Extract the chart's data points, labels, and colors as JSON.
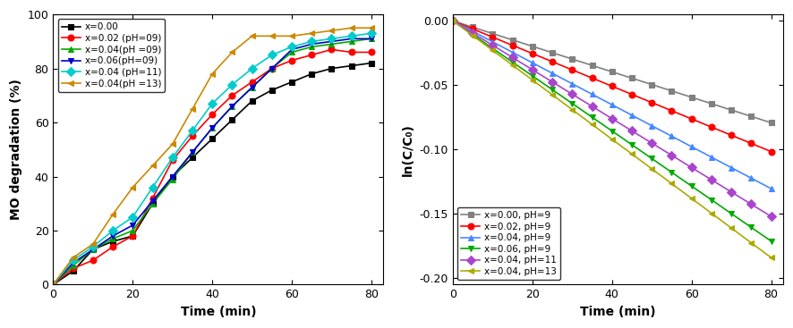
{
  "time_deg": [
    0,
    5,
    10,
    15,
    20,
    25,
    30,
    35,
    40,
    45,
    50,
    55,
    60,
    65,
    70,
    75,
    80
  ],
  "time_ln": [
    0,
    5,
    10,
    15,
    20,
    25,
    30,
    35,
    40,
    45,
    50,
    55,
    60,
    65,
    70,
    75,
    80
  ],
  "degradation": {
    "x000": [
      0,
      5,
      13,
      16,
      18,
      30,
      40,
      47,
      54,
      61,
      68,
      72,
      75,
      78,
      80,
      81,
      82
    ],
    "x002_pH9": [
      0,
      6,
      9,
      14,
      18,
      32,
      46,
      55,
      63,
      70,
      75,
      80,
      83,
      85,
      87,
      86,
      86
    ],
    "x004_pH9": [
      0,
      7,
      13,
      17,
      20,
      30,
      39,
      49,
      58,
      66,
      73,
      80,
      86,
      88,
      89,
      90,
      91
    ],
    "x006_pH9": [
      0,
      8,
      13,
      18,
      22,
      31,
      40,
      49,
      58,
      66,
      73,
      80,
      87,
      89,
      90,
      91,
      91
    ],
    "x004_pH11": [
      0,
      9,
      14,
      20,
      25,
      36,
      47,
      57,
      67,
      74,
      80,
      85,
      88,
      90,
      91,
      92,
      93
    ],
    "x004_pH13": [
      0,
      10,
      15,
      26,
      36,
      44,
      52,
      65,
      78,
      86,
      92,
      92,
      92,
      93,
      94,
      95,
      95
    ]
  },
  "ln_rate": {
    "x000_pH9": 0.00099,
    "x002_pH9": 0.00127,
    "x004_pH9": 0.00163,
    "x006_pH9": 0.00214,
    "x004_pH11": 0.0019,
    "x004_pH13": 0.0023
  },
  "deg_series": [
    {
      "key": "x000",
      "color": "#000000",
      "marker": "s",
      "label": "x=0.00",
      "mfc": "#000000"
    },
    {
      "key": "x002_pH9",
      "color": "#ff0000",
      "marker": "o",
      "label": "x=0.02 (pH=09)",
      "mfc": "#ff0000"
    },
    {
      "key": "x004_pH9",
      "color": "#00aa00",
      "marker": "^",
      "label": "x=0.04(pH =09)",
      "mfc": "#00aa00"
    },
    {
      "key": "x006_pH9",
      "color": "#0000cc",
      "marker": "v",
      "label": "x=0.06(pH=09)",
      "mfc": "#0000cc"
    },
    {
      "key": "x004_pH11",
      "color": "#00cccc",
      "marker": "D",
      "label": "x=0.04 (pH=11)",
      "mfc": "#00cccc"
    },
    {
      "key": "x004_pH13",
      "color": "#cc8800",
      "marker": "<",
      "label": "x=0.04(pH =13)",
      "mfc": "#cc8800"
    }
  ],
  "ln_series": [
    {
      "key": "x000_pH9",
      "color": "#808080",
      "marker": "s",
      "label": "x=0.00, pH=9"
    },
    {
      "key": "x002_pH9",
      "color": "#ff0000",
      "marker": "o",
      "label": "x=0.02, pH=9"
    },
    {
      "key": "x004_pH9",
      "color": "#4488ff",
      "marker": "^",
      "label": "x=0.04, pH=9"
    },
    {
      "key": "x006_pH9",
      "color": "#00aa00",
      "marker": "v",
      "label": "x=0.06, pH=9"
    },
    {
      "key": "x004_pH11",
      "color": "#aa44cc",
      "marker": "D",
      "label": "x=0.04, pH=11"
    },
    {
      "key": "x004_pH13",
      "color": "#aaaa00",
      "marker": "<",
      "label": "x=0.04, pH=13"
    }
  ],
  "xlabel": "Time (min)",
  "ylabel_deg": "MO degradation (%)",
  "ylabel_ln": "ln(C/C₀)",
  "xlim_deg": [
    0,
    83
  ],
  "xlim_ln": [
    0,
    83
  ],
  "ylim_deg": [
    0,
    100
  ],
  "ylim_ln": [
    -0.205,
    0.005
  ],
  "xticks": [
    0,
    20,
    40,
    60,
    80
  ],
  "yticks_deg": [
    0,
    20,
    40,
    60,
    80,
    100
  ],
  "yticks_ln": [
    0.0,
    -0.05,
    -0.1,
    -0.15,
    -0.2
  ]
}
